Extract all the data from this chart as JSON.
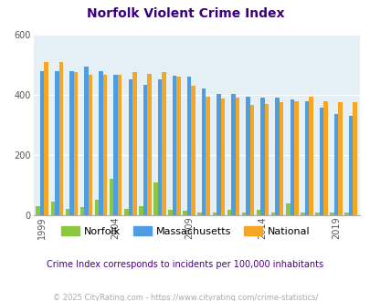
{
  "title": "Norfolk Violent Crime Index",
  "years": [
    1999,
    2000,
    2001,
    2002,
    2003,
    2004,
    2005,
    2006,
    2007,
    2008,
    2009,
    2010,
    2011,
    2012,
    2013,
    2014,
    2015,
    2016,
    2017,
    2018,
    2019,
    2020
  ],
  "norfolk": [
    30,
    45,
    22,
    28,
    52,
    120,
    22,
    30,
    110,
    18,
    15,
    8,
    10,
    18,
    8,
    18,
    8,
    40,
    8,
    10,
    8,
    8
  ],
  "massachusetts": [
    478,
    480,
    480,
    495,
    478,
    465,
    452,
    432,
    452,
    462,
    460,
    420,
    402,
    402,
    395,
    392,
    390,
    385,
    380,
    358,
    335,
    330
  ],
  "national": [
    510,
    510,
    475,
    465,
    465,
    465,
    475,
    470,
    475,
    460,
    430,
    395,
    388,
    390,
    365,
    370,
    375,
    380,
    395,
    380,
    375,
    375
  ],
  "ylim": [
    0,
    600
  ],
  "yticks": [
    0,
    200,
    400,
    600
  ],
  "norfolk_color": "#8dc63f",
  "massachusetts_color": "#4d9de0",
  "national_color": "#f5a623",
  "bg_color": "#e4f0f5",
  "title_color": "#3b0080",
  "subtitle": "Crime Index corresponds to incidents per 100,000 inhabitants",
  "footer": "© 2025 CityRating.com - https://www.cityrating.com/crime-statistics/",
  "subtitle_color": "#4b0082",
  "footer_color": "#aaaaaa",
  "bar_width": 0.28,
  "grid_color": "#ffffff"
}
